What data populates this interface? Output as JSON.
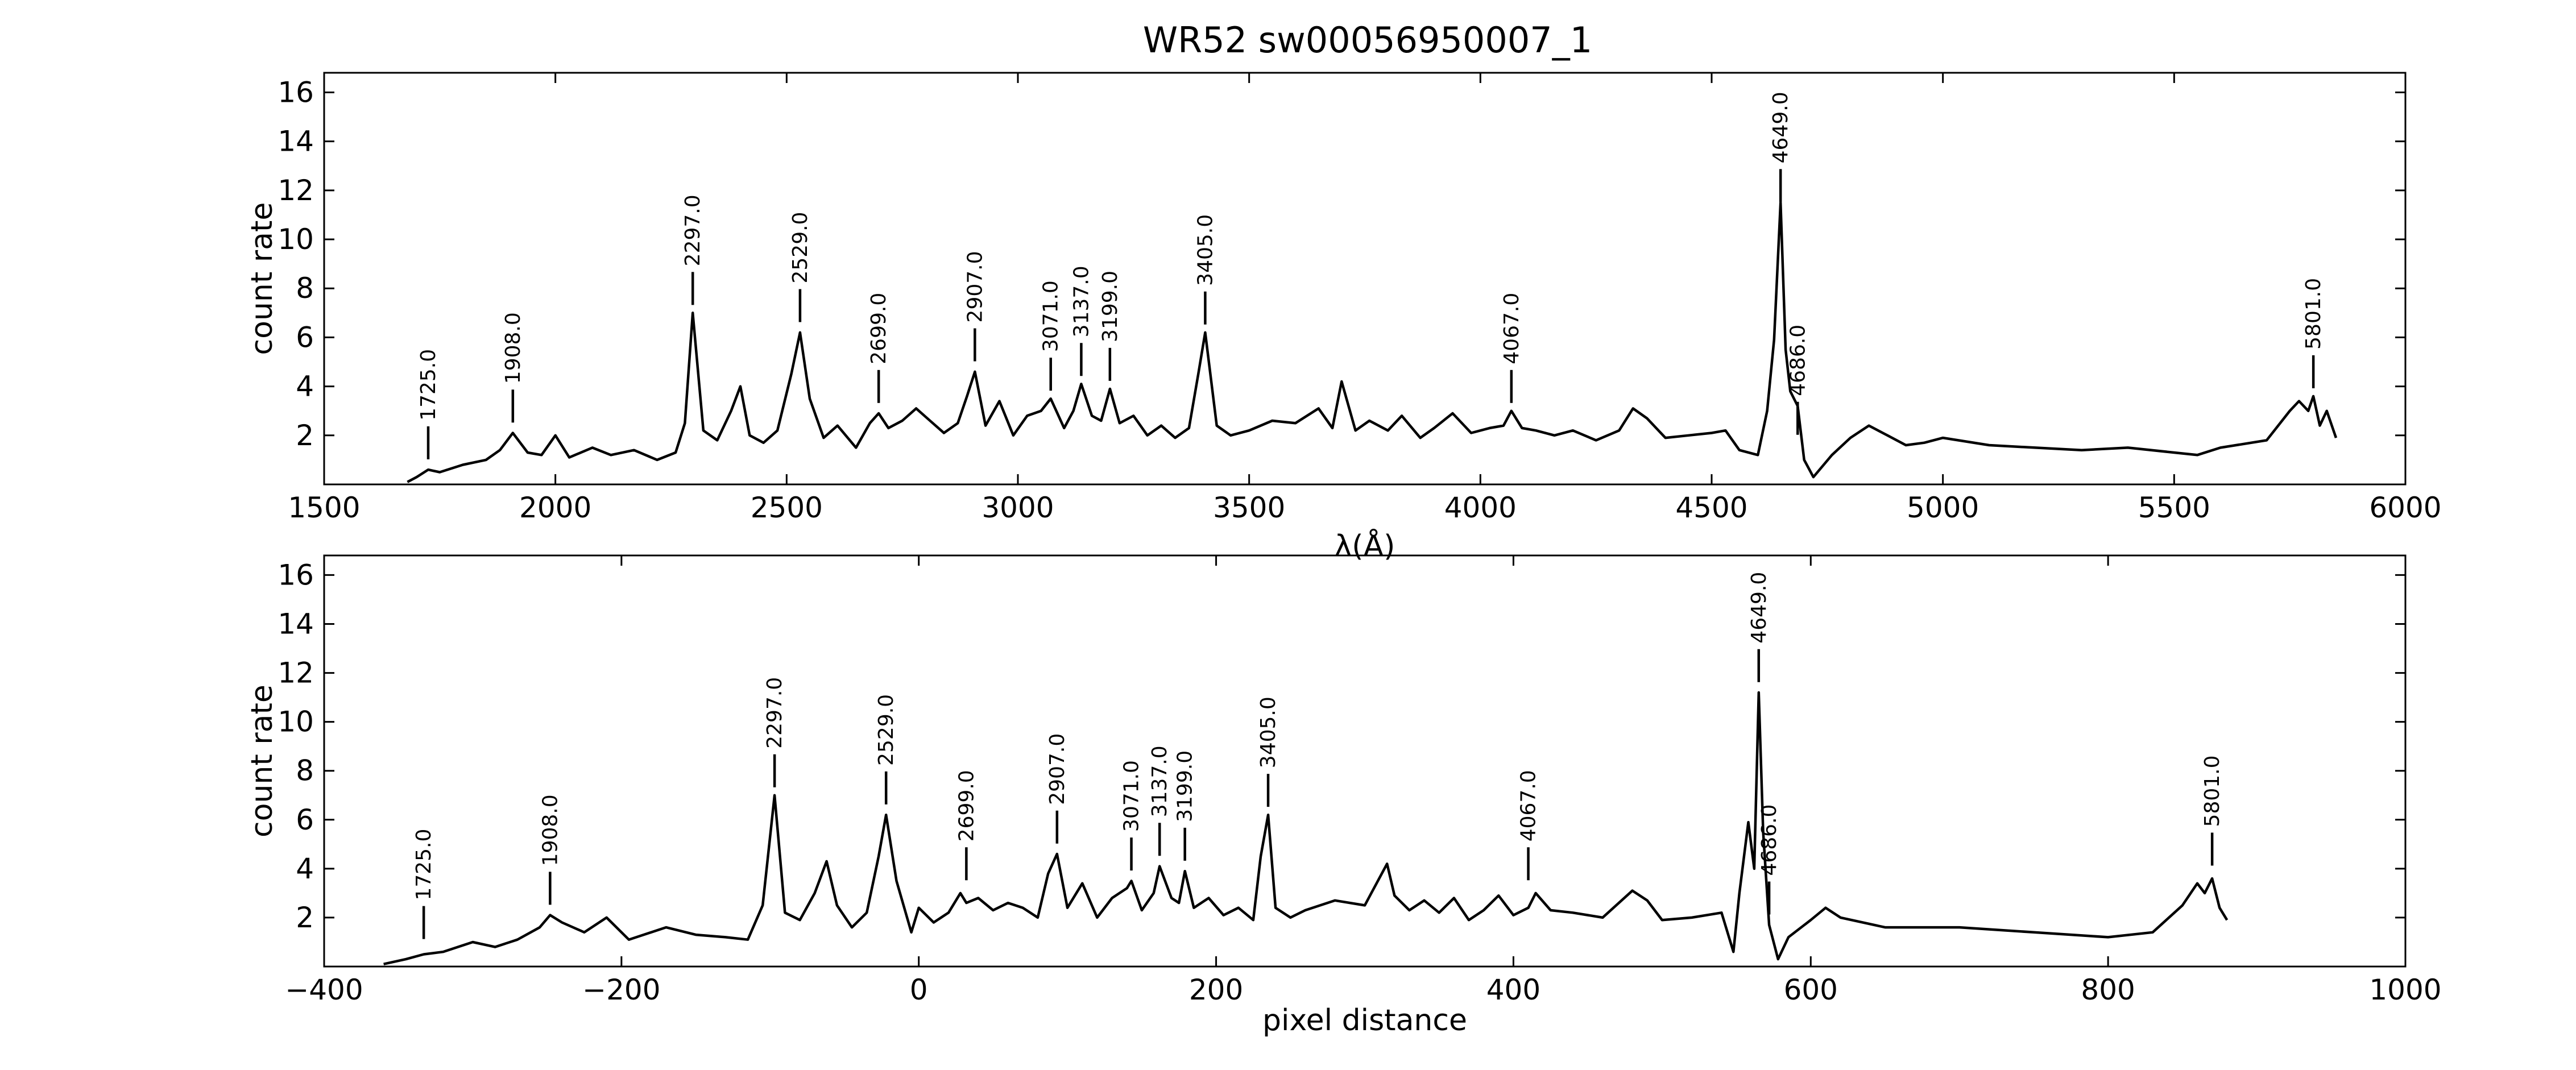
{
  "chart_data": [
    {
      "type": "line",
      "title": "WR52  sw00056950007_1",
      "xlabel": "λ(Å)",
      "ylabel": "count rate",
      "xlim": [
        1500,
        6000
      ],
      "ylim": [
        0,
        16.8
      ],
      "xticks": [
        "1500",
        "2000",
        "2500",
        "3000",
        "3500",
        "4000",
        "4500",
        "5000",
        "5500",
        "6000"
      ],
      "yticks": [
        "2",
        "4",
        "6",
        "8",
        "10",
        "12",
        "14",
        "16"
      ],
      "grid": false,
      "line_color": "#000000",
      "series": [
        {
          "x": [
            1680,
            1700,
            1725,
            1750,
            1800,
            1850,
            1880,
            1908,
            1940,
            1970,
            2000,
            2030,
            2080,
            2120,
            2170,
            2220,
            2260,
            2280,
            2297,
            2320,
            2350,
            2380,
            2400,
            2420,
            2450,
            2480,
            2510,
            2529,
            2550,
            2580,
            2610,
            2650,
            2680,
            2699,
            2720,
            2750,
            2780,
            2810,
            2840,
            2870,
            2890,
            2907,
            2930,
            2960,
            2990,
            3020,
            3050,
            3071,
            3100,
            3120,
            3137,
            3160,
            3180,
            3199,
            3220,
            3250,
            3280,
            3310,
            3340,
            3370,
            3390,
            3405,
            3430,
            3460,
            3500,
            3550,
            3600,
            3650,
            3680,
            3700,
            3730,
            3760,
            3800,
            3830,
            3870,
            3900,
            3940,
            3980,
            4020,
            4050,
            4067,
            4090,
            4120,
            4160,
            4200,
            4250,
            4300,
            4330,
            4360,
            4400,
            4450,
            4500,
            4530,
            4560,
            4600,
            4620,
            4635,
            4649,
            4660,
            4670,
            4686,
            4700,
            4720,
            4760,
            4800,
            4840,
            4880,
            4920,
            4960,
            5000,
            5100,
            5200,
            5300,
            5400,
            5500,
            5550,
            5600,
            5700,
            5750,
            5770,
            5790,
            5801,
            5815,
            5830,
            5850
          ],
          "y": [
            0.1,
            0.3,
            0.6,
            0.5,
            0.8,
            1.0,
            1.4,
            2.1,
            1.3,
            1.2,
            2.0,
            1.1,
            1.5,
            1.2,
            1.4,
            1.0,
            1.3,
            2.5,
            7.0,
            2.2,
            1.8,
            3.0,
            4.0,
            2.0,
            1.7,
            2.2,
            4.5,
            6.2,
            3.5,
            1.9,
            2.4,
            1.5,
            2.5,
            2.9,
            2.3,
            2.6,
            3.1,
            2.6,
            2.1,
            2.5,
            3.6,
            4.6,
            2.4,
            3.4,
            2.0,
            2.8,
            3.0,
            3.5,
            2.3,
            3.0,
            4.1,
            2.8,
            2.6,
            3.9,
            2.5,
            2.8,
            2.0,
            2.4,
            1.9,
            2.3,
            4.5,
            6.2,
            2.4,
            2.0,
            2.2,
            2.6,
            2.5,
            3.1,
            2.3,
            4.2,
            2.2,
            2.6,
            2.2,
            2.8,
            1.9,
            2.3,
            2.9,
            2.1,
            2.3,
            2.4,
            3.0,
            2.3,
            2.2,
            2.0,
            2.2,
            1.8,
            2.2,
            3.1,
            2.7,
            1.9,
            2.0,
            2.1,
            2.2,
            1.4,
            1.2,
            3.0,
            5.9,
            11.5,
            5.5,
            3.8,
            3.2,
            1.0,
            0.3,
            1.2,
            1.9,
            2.4,
            2.0,
            1.6,
            1.7,
            1.9,
            1.6,
            1.5,
            1.4,
            1.5,
            1.3,
            1.2,
            1.5,
            1.8,
            3.0,
            3.4,
            3.0,
            3.6,
            2.4,
            3.0,
            1.9
          ]
        }
      ],
      "annotations": [
        {
          "label": "1725.0",
          "x": 1725,
          "y_tip": 0.7
        },
        {
          "label": "1908.0",
          "x": 1908,
          "y_tip": 2.2
        },
        {
          "label": "2297.0",
          "x": 2297,
          "y_tip": 7.0
        },
        {
          "label": "2529.0",
          "x": 2529,
          "y_tip": 6.3
        },
        {
          "label": "2699.0",
          "x": 2699,
          "y_tip": 3.0
        },
        {
          "label": "2907.0",
          "x": 2907,
          "y_tip": 4.7
        },
        {
          "label": "3071.0",
          "x": 3071,
          "y_tip": 3.5
        },
        {
          "label": "3137.0",
          "x": 3137,
          "y_tip": 4.1
        },
        {
          "label": "3199.0",
          "x": 3199,
          "y_tip": 3.9
        },
        {
          "label": "3405.0",
          "x": 3405,
          "y_tip": 6.2
        },
        {
          "label": "4067.0",
          "x": 4067,
          "y_tip": 3.0
        },
        {
          "label": "4649.0",
          "x": 4649,
          "y_tip": 11.2
        },
        {
          "label": "4686.0",
          "x": 4686,
          "y_tip": 1.7
        },
        {
          "label": "5801.0",
          "x": 5801,
          "y_tip": 3.6
        }
      ]
    },
    {
      "type": "line",
      "title": "",
      "xlabel": "pixel distance",
      "ylabel": "count rate",
      "xlim": [
        -400,
        1000
      ],
      "ylim": [
        0,
        16.8
      ],
      "xticks": [
        "−400",
        "−200",
        "0",
        "200",
        "400",
        "600",
        "800",
        "1000"
      ],
      "yticks": [
        "2",
        "4",
        "6",
        "8",
        "10",
        "12",
        "14",
        "16"
      ],
      "grid": false,
      "line_color": "#000000",
      "series": [
        {
          "x": [
            -360,
            -345,
            -333,
            -320,
            -300,
            -285,
            -270,
            -255,
            -248,
            -240,
            -225,
            -210,
            -195,
            -170,
            -150,
            -130,
            -115,
            -105,
            -97,
            -90,
            -80,
            -70,
            -62,
            -55,
            -45,
            -35,
            -27,
            -22,
            -15,
            -5,
            0,
            10,
            20,
            28,
            32,
            40,
            50,
            60,
            70,
            80,
            87,
            93,
            100,
            110,
            120,
            130,
            140,
            143,
            150,
            158,
            162,
            170,
            175,
            179,
            185,
            195,
            205,
            215,
            225,
            230,
            235,
            240,
            250,
            260,
            280,
            300,
            315,
            320,
            330,
            340,
            350,
            360,
            370,
            380,
            390,
            400,
            410,
            415,
            425,
            440,
            460,
            480,
            490,
            500,
            520,
            540,
            548,
            552,
            558,
            562,
            565,
            568,
            572,
            578,
            585,
            600,
            610,
            620,
            650,
            700,
            750,
            800,
            830,
            850,
            860,
            865,
            870,
            875,
            880
          ],
          "y": [
            0.1,
            0.3,
            0.5,
            0.6,
            1.0,
            0.8,
            1.1,
            1.6,
            2.1,
            1.8,
            1.4,
            2.0,
            1.1,
            1.6,
            1.3,
            1.2,
            1.1,
            2.5,
            7.0,
            2.2,
            1.9,
            3.0,
            4.3,
            2.5,
            1.6,
            2.2,
            4.5,
            6.2,
            3.5,
            1.4,
            2.4,
            1.8,
            2.2,
            3.0,
            2.6,
            2.8,
            2.3,
            2.6,
            2.4,
            2.0,
            3.8,
            4.6,
            2.4,
            3.4,
            2.0,
            2.8,
            3.2,
            3.5,
            2.3,
            3.0,
            4.1,
            2.8,
            2.6,
            3.9,
            2.4,
            2.8,
            2.1,
            2.4,
            1.9,
            4.5,
            6.2,
            2.4,
            2.0,
            2.3,
            2.7,
            2.5,
            4.2,
            2.9,
            2.3,
            2.7,
            2.2,
            2.8,
            1.9,
            2.3,
            2.9,
            2.1,
            2.4,
            3.0,
            2.3,
            2.2,
            2.0,
            3.1,
            2.7,
            1.9,
            2.0,
            2.2,
            0.6,
            3.0,
            5.9,
            4.0,
            11.2,
            5.5,
            1.7,
            0.3,
            1.2,
            1.9,
            2.4,
            2.0,
            1.6,
            1.6,
            1.4,
            1.2,
            1.4,
            2.5,
            3.4,
            3.0,
            3.6,
            2.4,
            1.9
          ]
        }
      ],
      "annotations": [
        {
          "label": "1725.0",
          "x": -333,
          "y_tip": 0.8
        },
        {
          "label": "1908.0",
          "x": -248,
          "y_tip": 2.2
        },
        {
          "label": "2297.0",
          "x": -97,
          "y_tip": 7.0
        },
        {
          "label": "2529.0",
          "x": -22,
          "y_tip": 6.3
        },
        {
          "label": "2699.0",
          "x": 32,
          "y_tip": 3.2
        },
        {
          "label": "2907.0",
          "x": 93,
          "y_tip": 4.7
        },
        {
          "label": "3071.0",
          "x": 143,
          "y_tip": 3.6
        },
        {
          "label": "3137.0",
          "x": 162,
          "y_tip": 4.2
        },
        {
          "label": "3199.0",
          "x": 179,
          "y_tip": 4.0
        },
        {
          "label": "3405.0",
          "x": 235,
          "y_tip": 6.2
        },
        {
          "label": "4067.0",
          "x": 410,
          "y_tip": 3.2
        },
        {
          "label": "4649.0",
          "x": 565,
          "y_tip": 11.3
        },
        {
          "label": "4686.0",
          "x": 572,
          "y_tip": 1.8
        },
        {
          "label": "5801.0",
          "x": 870,
          "y_tip": 3.8
        }
      ]
    }
  ]
}
